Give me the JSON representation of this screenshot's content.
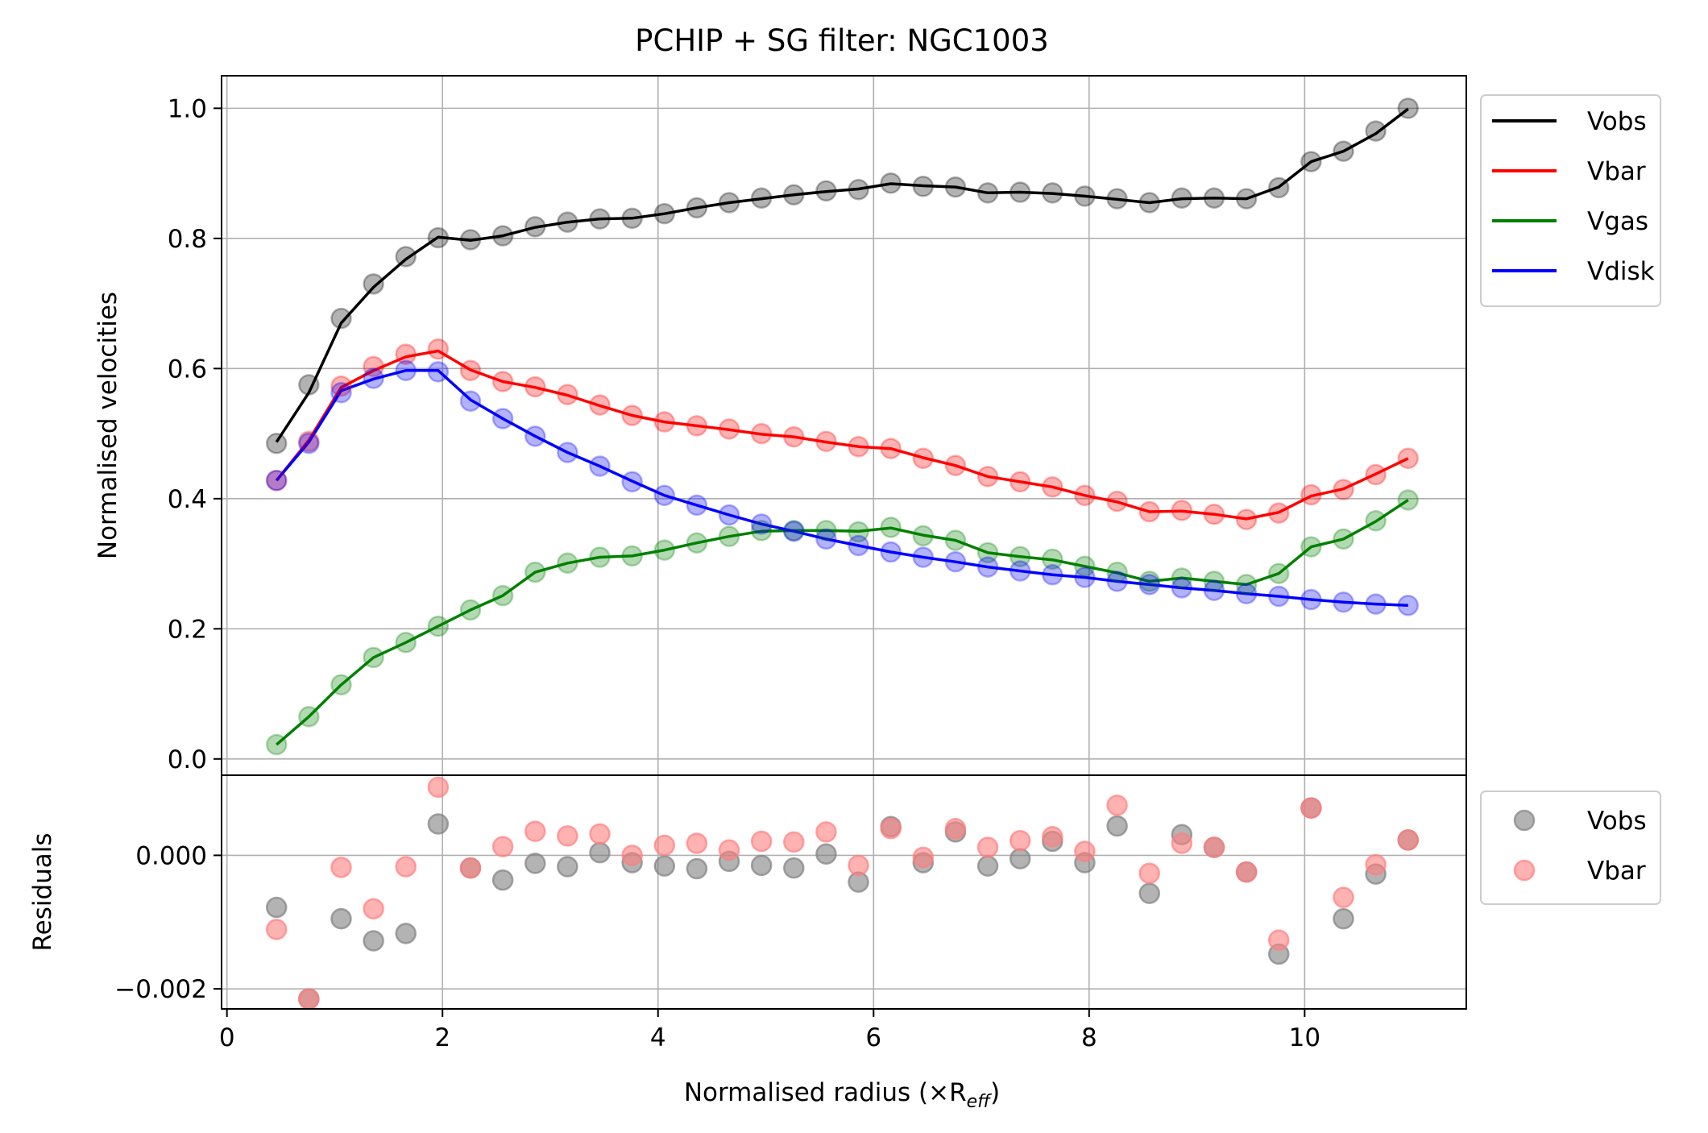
{
  "chart_data": {
    "type": "line",
    "title": "PCHIP + SG filter: NGC1003",
    "xlabel": "Normalised radius (×R",
    "xlabel_sub": "eff",
    "xlabel_close": ")",
    "xlim": [
      -0.05,
      11.5
    ],
    "xticks": [
      0,
      2,
      4,
      6,
      8,
      10
    ],
    "xtick_labels": [
      "0",
      "2",
      "4",
      "6",
      "8",
      "10"
    ],
    "top_panel": {
      "ylabel": "Normalised velocities",
      "ylim": [
        -0.025,
        1.05
      ],
      "yticks": [
        0.0,
        0.2,
        0.4,
        0.6,
        0.8,
        1.0
      ],
      "ytick_labels": [
        "0.0",
        "0.2",
        "0.4",
        "0.6",
        "0.8",
        "1.0"
      ],
      "grid": true,
      "legend_position": "outside-top-right",
      "x": [
        0.46,
        0.76,
        1.06,
        1.36,
        1.66,
        1.96,
        2.26,
        2.56,
        2.86,
        3.16,
        3.46,
        3.76,
        4.06,
        4.36,
        4.66,
        4.96,
        5.26,
        5.56,
        5.86,
        6.16,
        6.46,
        6.76,
        7.06,
        7.36,
        7.66,
        7.96,
        8.26,
        8.56,
        8.86,
        9.16,
        9.46,
        9.76,
        10.06,
        10.36,
        10.66,
        10.96
      ],
      "series": [
        {
          "name": "Vobs",
          "color": "#000000",
          "points": [
            0.485,
            0.575,
            0.677,
            0.73,
            0.772,
            0.801,
            0.798,
            0.804,
            0.818,
            0.825,
            0.83,
            0.831,
            0.838,
            0.847,
            0.855,
            0.862,
            0.867,
            0.873,
            0.875,
            0.885,
            0.88,
            0.879,
            0.87,
            0.871,
            0.87,
            0.865,
            0.861,
            0.855,
            0.862,
            0.862,
            0.861,
            0.878,
            0.918,
            0.934,
            0.965,
            1.0
          ],
          "smoothed": [
            0.487,
            0.563,
            0.67,
            0.725,
            0.768,
            0.802,
            0.797,
            0.804,
            0.817,
            0.825,
            0.83,
            0.831,
            0.838,
            0.847,
            0.855,
            0.861,
            0.867,
            0.872,
            0.876,
            0.884,
            0.881,
            0.879,
            0.87,
            0.871,
            0.869,
            0.865,
            0.86,
            0.855,
            0.861,
            0.862,
            0.861,
            0.879,
            0.918,
            0.934,
            0.961,
            0.999
          ]
        },
        {
          "name": "Vbar",
          "color": "#ff0000",
          "points": [
            0.428,
            0.488,
            0.573,
            0.603,
            0.622,
            0.63,
            0.597,
            0.58,
            0.572,
            0.56,
            0.544,
            0.528,
            0.518,
            0.512,
            0.507,
            0.5,
            0.495,
            0.488,
            0.48,
            0.477,
            0.462,
            0.451,
            0.434,
            0.426,
            0.418,
            0.405,
            0.396,
            0.38,
            0.382,
            0.376,
            0.368,
            0.378,
            0.406,
            0.414,
            0.437,
            0.462
          ],
          "smoothed": [
            0.428,
            0.49,
            0.571,
            0.597,
            0.618,
            0.627,
            0.598,
            0.58,
            0.571,
            0.559,
            0.543,
            0.528,
            0.518,
            0.512,
            0.506,
            0.499,
            0.495,
            0.487,
            0.48,
            0.477,
            0.463,
            0.451,
            0.434,
            0.426,
            0.418,
            0.405,
            0.395,
            0.38,
            0.381,
            0.376,
            0.369,
            0.379,
            0.404,
            0.415,
            0.438,
            0.462
          ]
        },
        {
          "name": "Vgas",
          "color": "#008000",
          "points": [
            0.022,
            0.065,
            0.114,
            0.156,
            0.179,
            0.204,
            0.229,
            0.251,
            0.287,
            0.301,
            0.31,
            0.312,
            0.321,
            0.332,
            0.342,
            0.351,
            0.351,
            0.351,
            0.349,
            0.356,
            0.343,
            0.336,
            0.317,
            0.311,
            0.307,
            0.296,
            0.287,
            0.273,
            0.278,
            0.273,
            0.268,
            0.285,
            0.326,
            0.338,
            0.366,
            0.398
          ],
          "smoothed": [
            0.022,
            0.065,
            0.114,
            0.156,
            0.179,
            0.204,
            0.229,
            0.251,
            0.287,
            0.301,
            0.31,
            0.312,
            0.321,
            0.332,
            0.342,
            0.35,
            0.351,
            0.351,
            0.35,
            0.355,
            0.344,
            0.336,
            0.317,
            0.311,
            0.306,
            0.296,
            0.286,
            0.273,
            0.278,
            0.273,
            0.268,
            0.285,
            0.326,
            0.338,
            0.365,
            0.398
          ]
        },
        {
          "name": "Vdisk",
          "color": "#0000ff",
          "points": [
            0.428,
            0.485,
            0.563,
            0.585,
            0.597,
            0.595,
            0.55,
            0.523,
            0.496,
            0.471,
            0.45,
            0.426,
            0.405,
            0.39,
            0.375,
            0.361,
            0.35,
            0.338,
            0.328,
            0.318,
            0.31,
            0.303,
            0.295,
            0.289,
            0.283,
            0.279,
            0.273,
            0.268,
            0.263,
            0.259,
            0.254,
            0.25,
            0.245,
            0.241,
            0.238,
            0.236
          ],
          "smoothed": [
            0.428,
            0.487,
            0.566,
            0.584,
            0.597,
            0.597,
            0.552,
            0.523,
            0.496,
            0.471,
            0.45,
            0.427,
            0.405,
            0.39,
            0.375,
            0.361,
            0.35,
            0.338,
            0.328,
            0.318,
            0.31,
            0.303,
            0.295,
            0.289,
            0.283,
            0.279,
            0.273,
            0.268,
            0.263,
            0.259,
            0.254,
            0.25,
            0.245,
            0.241,
            0.238,
            0.236
          ]
        }
      ]
    },
    "bottom_panel": {
      "ylabel": "Residuals",
      "ylim": [
        -0.0023,
        0.0012
      ],
      "yticks": [
        0.0,
        -0.002
      ],
      "ytick_labels": [
        "0.000",
        "−0.002"
      ],
      "grid": true,
      "legend_position": "outside-bottom-right",
      "series": [
        {
          "name": "Vobs",
          "color": "#808080",
          "values": [
            -0.00078,
            -0.00215,
            -0.00095,
            -0.00128,
            -0.00117,
            0.00047,
            -0.00019,
            -0.00037,
            -0.00012,
            -0.00017,
            4e-05,
            -0.00011,
            -0.00016,
            -0.0002,
            -9e-05,
            -0.00015,
            -0.00019,
            2e-05,
            -0.0004,
            0.00043,
            -0.00011,
            0.00035,
            -0.00016,
            -5e-05,
            0.00021,
            -0.00011,
            0.00044,
            -0.00057,
            0.00031,
            0.00012,
            -0.00025,
            -0.00148,
            0.00071,
            -0.00095,
            -0.00028,
            0.00023
          ]
        },
        {
          "name": "Vbar",
          "color": "#ff7f7f",
          "values": [
            -0.00111,
            -0.00215,
            -0.00018,
            -0.0008,
            -0.00017,
            0.00102,
            -0.00019,
            0.00013,
            0.00036,
            0.00029,
            0.00032,
            0.0,
            0.00015,
            0.00018,
            8e-05,
            0.00021,
            0.0002,
            0.00035,
            -0.00015,
            0.0004,
            -3e-05,
            0.0004,
            0.00012,
            0.00022,
            0.00028,
            6e-05,
            0.00075,
            -0.00027,
            0.00018,
            0.00012,
            -0.00025,
            -0.00127,
            0.00071,
            -0.00063,
            -0.00014,
            0.00023
          ]
        }
      ]
    },
    "legend_top": [
      "Vobs",
      "Vbar",
      "Vgas",
      "Vdisk"
    ],
    "legend_bottom": [
      "Vobs",
      "Vbar"
    ]
  }
}
